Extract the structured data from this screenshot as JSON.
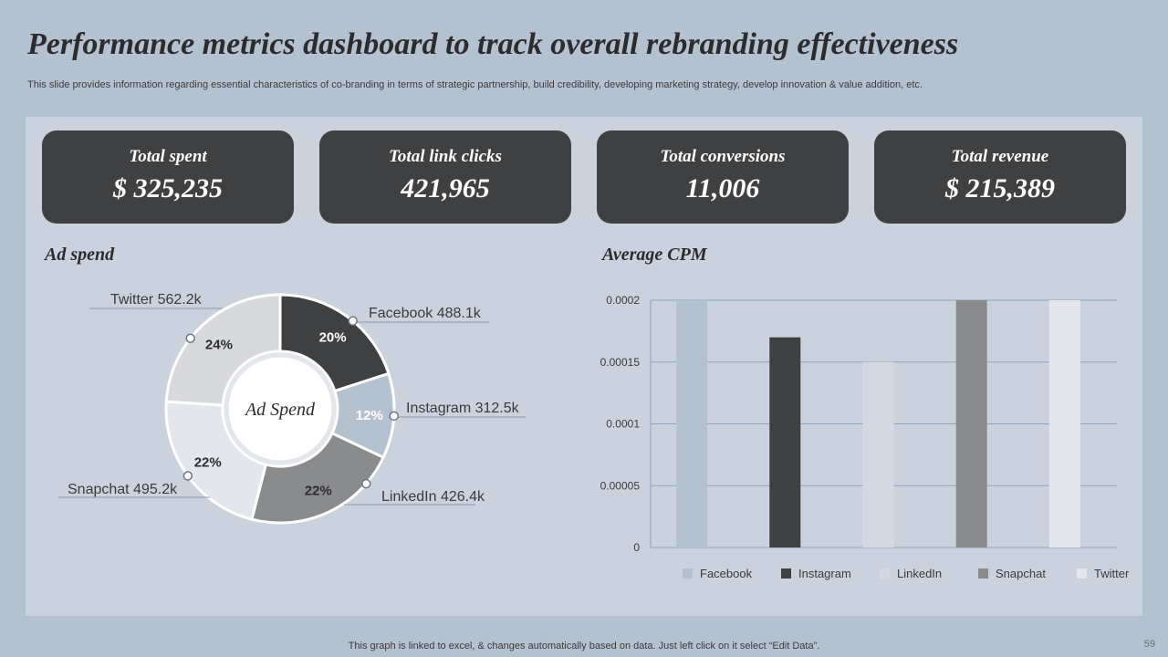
{
  "page": {
    "title": "Performance metrics dashboard to track overall rebranding effectiveness",
    "subtitle": "This slide provides information regarding essential characteristics of co-branding in terms of strategic partnership, build credibility, developing marketing strategy, develop innovation & value addition, etc.",
    "footer": "This graph is linked to excel,  & changes automatically based on data. Just left click on it select “Edit Data”.",
    "page_number": "59"
  },
  "kpis": [
    {
      "label": "Total spent",
      "value": "$ 325,235"
    },
    {
      "label": "Total link clicks",
      "value": "421,965"
    },
    {
      "label": "Total conversions",
      "value": "11,006"
    },
    {
      "label": "Total revenue",
      "value": "$ 215,389"
    }
  ],
  "sections": {
    "ad_spend_title": "Ad spend",
    "cpm_title": "Average CPM"
  },
  "chart_data": [
    {
      "type": "pie",
      "variant": "donut",
      "center_label": "Ad Spend",
      "categories": [
        "Facebook",
        "Instagram",
        "LinkedIn",
        "Snapchat",
        "Twitter"
      ],
      "values": [
        20,
        12,
        22,
        22,
        24
      ],
      "value_labels": [
        "20%",
        "12%",
        "22%",
        "22%",
        "24%"
      ],
      "callouts": [
        "Facebook 488.1k",
        "Instagram  312.5k",
        "LinkedIn  426.4k",
        "Snapchat  495.2k",
        "Twitter  562.2k"
      ],
      "colors": [
        "#3f4042",
        "#b4c1cf",
        "#8a8b8d",
        "#e3e7ed",
        "#d7d9dc"
      ]
    },
    {
      "type": "bar",
      "categories": [
        "Facebook",
        "Instagram",
        "LinkedIn",
        "Snapchat",
        "Twitter"
      ],
      "values": [
        0.0002,
        0.00017,
        0.00015,
        0.0002,
        0.0002
      ],
      "colors": [
        "#b4c1cf",
        "#3f4042",
        "#d3d9e0",
        "#8a8b8d",
        "#e3e7ed"
      ],
      "yticks": [
        "0",
        "0.00005",
        "0.0001",
        "0.00015",
        "0.0002"
      ],
      "ylim": [
        0,
        0.0002
      ],
      "grid": true,
      "legend": "bottom"
    }
  ]
}
